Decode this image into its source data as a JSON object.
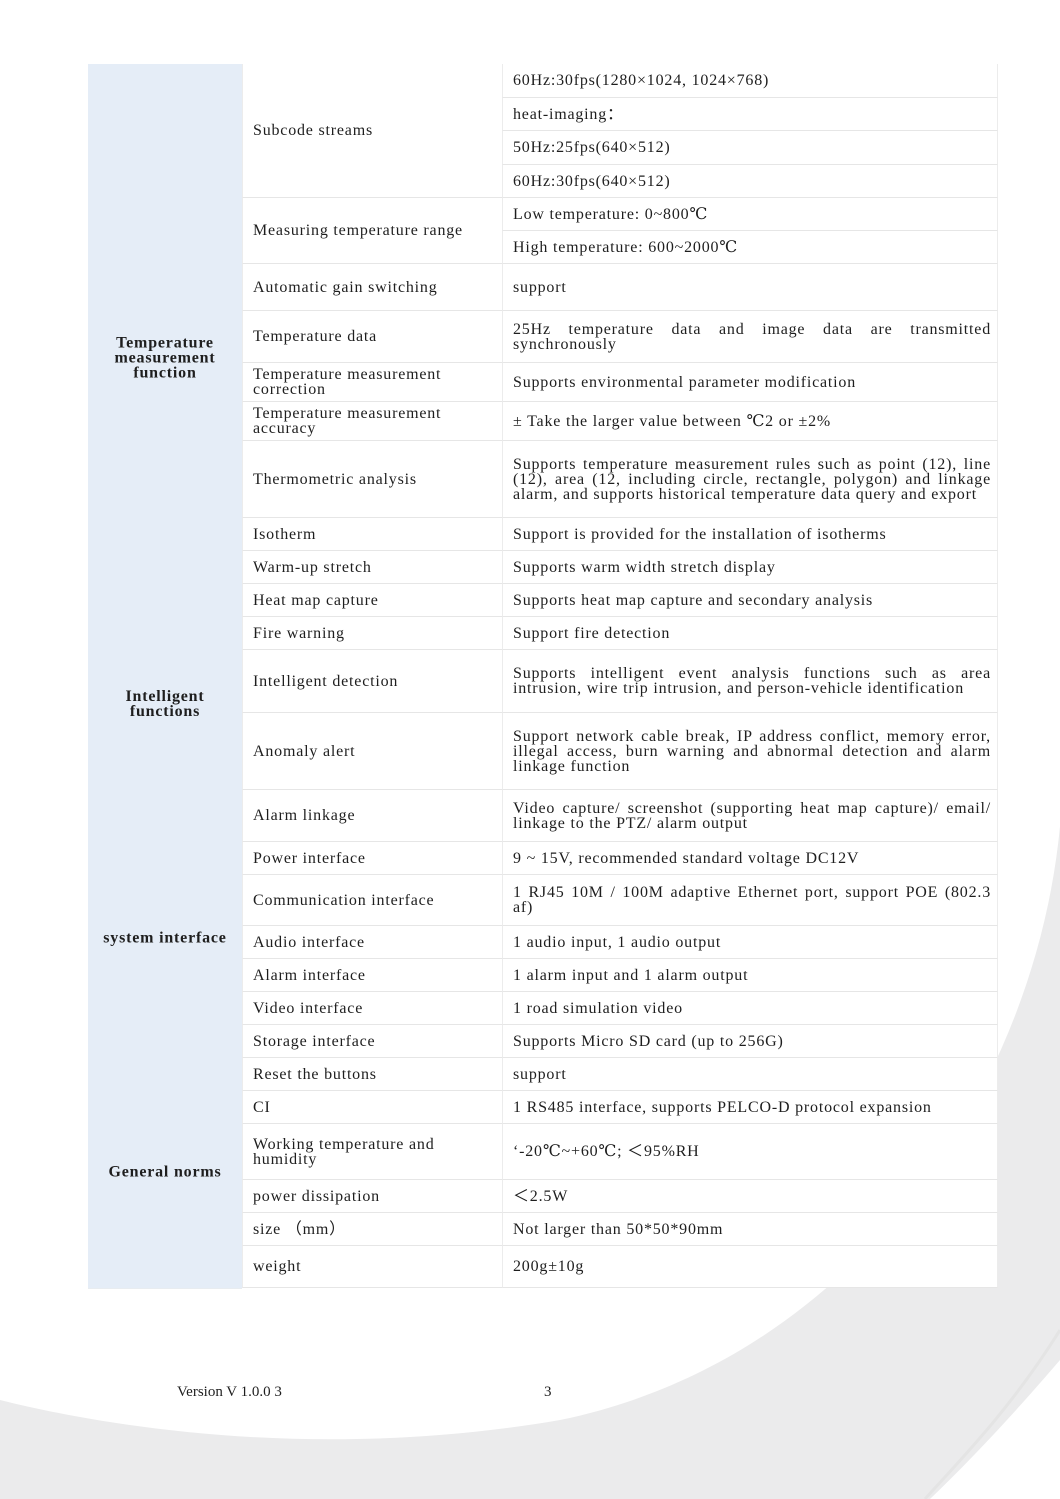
{
  "groups": [
    {
      "label": "",
      "rows": [
        {
          "name": "Subcode streams",
          "values": [
            "60Hz:30fps(1280×1024, 1024×768)",
            " heat-imaging：",
            "50Hz:25fps(640×512)",
            "60Hz:30fps(640×512)"
          ]
        }
      ]
    },
    {
      "label": "Temperature measurement function",
      "rows": [
        {
          "name": "Measuring temperature range",
          "values": [
            "Low temperature: 0~800℃",
            "High temperature: 600~2000℃"
          ]
        },
        {
          "name": " Automatic gain switching",
          "values": [
            " support"
          ]
        },
        {
          "name": "Temperature data",
          "values": [
            "25Hz temperature data and image data are transmitted synchronously"
          ]
        },
        {
          "name": "Temperature measurement correction",
          "values": [
            "Supports environmental parameter modification"
          ]
        },
        {
          "name": "Temperature measurement accuracy",
          "values": [
            "± Take the larger value between ℃2 or ±2%"
          ]
        },
        {
          "name": " Thermometric analysis",
          "values": [
            "Supports temperature measurement rules such as point (12), line (12), area (12, including circle, rectangle, polygon) and linkage alarm, and supports historical temperature data query and export"
          ]
        },
        {
          "name": " Isotherm",
          "values": [
            "Support is provided for the installation of isotherms"
          ]
        },
        {
          "name": "Warm-up stretch",
          "values": [
            "Supports warm width stretch display"
          ]
        },
        {
          "name": "Heat map capture",
          "values": [
            "Supports heat map capture and secondary analysis"
          ]
        }
      ]
    },
    {
      "label": "Intelligent functions",
      "rows": [
        {
          "name": "Fire warning",
          "values": [
            "Support fire detection"
          ]
        },
        {
          "name": "Intelligent detection",
          "values": [
            "Supports intelligent event analysis functions such as area intrusion, wire trip intrusion, and person-vehicle identification"
          ]
        },
        {
          "name": "Anomaly alert",
          "values": [
            "Support network cable break, IP address conflict, memory error, illegal access, burn warning and abnormal detection and alarm linkage function"
          ]
        },
        {
          "name": "Alarm linkage",
          "values": [
            "Video capture/ screenshot (supporting heat map capture)/ email/ linkage to the PTZ/ alarm output"
          ]
        }
      ]
    },
    {
      "label": "system interface",
      "rows": [
        {
          "name": "Power interface",
          "values": [
            "9 ~ 15V, recommended standard voltage DC12V"
          ]
        },
        {
          "name": "Communication interface",
          "values": [
            "1 RJ45 10M / 100M adaptive Ethernet port, support POE (802.3 af)"
          ]
        },
        {
          "name": "Audio interface",
          "values": [
            " 1 audio input, 1 audio output"
          ]
        },
        {
          "name": "Alarm interface",
          "values": [
            " 1 alarm input and 1 alarm output"
          ]
        },
        {
          "name": "Video interface",
          "values": [
            " 1 road simulation video"
          ]
        },
        {
          "name": "Storage interface",
          "values": [
            "Supports Micro SD card (up to 256G)"
          ]
        },
        {
          "name": "Reset the buttons",
          "values": [
            " support"
          ]
        },
        {
          "name": "CI",
          "values": [
            "1 RS485 interface, supports PELCO-D protocol expansion"
          ]
        }
      ]
    },
    {
      "label": "General norms",
      "rows": [
        {
          "name": "Working temperature and humidity",
          "values": [
            "  ‘-20℃~+60℃; ＜95%RH"
          ]
        },
        {
          "name": " power dissipation",
          "values": [
            "＜2.5W"
          ]
        },
        {
          "name": " size （mm）",
          "values": [
            "Not larger than 50*50*90mm"
          ]
        },
        {
          "name": " weight",
          "values": [
            "200g±10g"
          ]
        }
      ]
    }
  ],
  "footer": {
    "version": "Version V 1.0.0 3",
    "page": "3"
  },
  "colors": {
    "group_bg": "#e5edf7",
    "watermark": "#e9e9ea"
  }
}
